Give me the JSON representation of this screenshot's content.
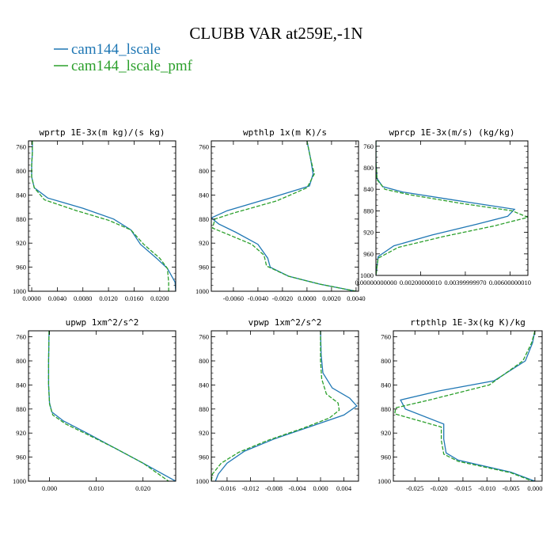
{
  "figure": {
    "title": "CLUBB VAR at259E,-1N",
    "legend": [
      {
        "label": "cam144_lscale",
        "color": "#1f77b4"
      },
      {
        "label": "cam144_lscale_pmf",
        "color": "#2ca02c"
      }
    ]
  },
  "chart_data": [
    {
      "type": "line",
      "title": "wprtp  1E-3x(m kg)/(s kg)",
      "xlim": [
        -0.0005,
        0.0225
      ],
      "ylim": [
        1000,
        750
      ],
      "xticks": [
        "0.0000",
        "0.0040",
        "0.0080",
        "0.0120",
        "0.0160",
        "0.0200"
      ],
      "xtick_values": [
        0,
        0.004,
        0.008,
        0.012,
        0.016,
        0.02
      ],
      "yticks": [
        "760",
        "800",
        "840",
        "880",
        "920",
        "960",
        "1000"
      ],
      "ytick_values": [
        760,
        800,
        840,
        880,
        920,
        960,
        1000
      ],
      "series": [
        {
          "name": "cam144_lscale",
          "color": "#1f77b4",
          "x": [
            0.0001,
            0.0001,
            0.0,
            0.0,
            0.0004,
            0.0025,
            0.008,
            0.0128,
            0.0155,
            0.017,
            0.0195,
            0.0212,
            0.0224,
            0.0225
          ],
          "y": [
            750,
            770,
            790,
            810,
            828,
            845,
            862,
            880,
            898,
            922,
            945,
            962,
            985,
            1000
          ]
        },
        {
          "name": "cam144_lscale_pmf",
          "color": "#2ca02c",
          "x": [
            0.0001,
            0.0001,
            0.0,
            0.0,
            0.0004,
            0.002,
            0.007,
            0.012,
            0.0155,
            0.0175,
            0.02,
            0.0212,
            0.0214,
            0.0214
          ],
          "y": [
            750,
            770,
            790,
            810,
            828,
            848,
            866,
            882,
            898,
            922,
            945,
            962,
            985,
            1000
          ]
        }
      ]
    },
    {
      "type": "line",
      "title": "wpthlp  1x(m K)/s",
      "xlim": [
        -0.0078,
        0.0042
      ],
      "ylim": [
        1000,
        750
      ],
      "xticks": [
        "-0.0060",
        "-0.0040",
        "-0.0020",
        "0.0000",
        "0.0020",
        "0.0040"
      ],
      "xtick_values": [
        -0.006,
        -0.004,
        -0.002,
        0,
        0.002,
        0.004
      ],
      "yticks": [
        "760",
        "800",
        "840",
        "880",
        "920",
        "960",
        "1000"
      ],
      "ytick_values": [
        760,
        800,
        840,
        880,
        920,
        960,
        1000
      ],
      "series": [
        {
          "name": "cam144_lscale",
          "color": "#1f77b4",
          "x": [
            0.0,
            0.0003,
            0.0005,
            0.0002,
            -0.003,
            -0.0065,
            -0.0078,
            -0.0072,
            -0.0058,
            -0.004,
            -0.0032,
            -0.003,
            -0.0015,
            0.001,
            0.004
          ],
          "y": [
            750,
            780,
            805,
            825,
            845,
            866,
            878,
            888,
            902,
            922,
            945,
            960,
            975,
            988,
            1000
          ]
        },
        {
          "name": "cam144_lscale_pmf",
          "color": "#2ca02c",
          "x": [
            0.0,
            0.0003,
            0.0006,
            0.0,
            -0.0025,
            -0.006,
            -0.0075,
            -0.0077,
            -0.0065,
            -0.0045,
            -0.0035,
            -0.0033,
            -0.0015,
            0.001,
            0.004
          ],
          "y": [
            750,
            780,
            805,
            828,
            850,
            870,
            880,
            895,
            905,
            922,
            940,
            958,
            975,
            988,
            1000
          ]
        }
      ]
    },
    {
      "type": "line",
      "title": "wprcp  1E-3x(m/s) (kg/kg)",
      "xlim": [
        0.0,
        0.0068
      ],
      "ylim": [
        1000,
        750
      ],
      "xticks": [
        "0.00000000000",
        "0.00200000010",
        "0.00399999970",
        "0.00600000010"
      ],
      "xtick_values": [
        0,
        0.002,
        0.004,
        0.006
      ],
      "yticks": [
        "760",
        "800",
        "840",
        "880",
        "920",
        "960",
        "1000"
      ],
      "ytick_values": [
        760,
        800,
        840,
        880,
        920,
        960,
        1000
      ],
      "series": [
        {
          "name": "cam144_lscale",
          "color": "#1f77b4",
          "x": [
            0.0,
            0.0,
            5e-05,
            0.0003,
            0.0012,
            0.0035,
            0.0062,
            0.0059,
            0.0045,
            0.0025,
            0.0008,
            0.0001,
            0.0
          ],
          "y": [
            750,
            790,
            820,
            835,
            845,
            860,
            877,
            890,
            905,
            925,
            945,
            965,
            1000
          ]
        },
        {
          "name": "cam144_lscale_pmf",
          "color": "#2ca02c",
          "x": [
            0.0,
            0.0,
            5e-05,
            0.0004,
            0.0015,
            0.0038,
            0.0061,
            0.0068,
            0.0053,
            0.003,
            0.001,
            0.0001,
            0.0
          ],
          "y": [
            750,
            790,
            822,
            840,
            850,
            866,
            880,
            892,
            908,
            928,
            948,
            968,
            1000
          ]
        }
      ]
    },
    {
      "type": "line",
      "title": "upwp  1xm^2/s^2",
      "xlim": [
        -0.0045,
        0.027
      ],
      "ylim": [
        1000,
        750
      ],
      "xticks": [
        "0.000",
        "0.010",
        "0.020"
      ],
      "xtick_values": [
        0,
        0.01,
        0.02
      ],
      "yticks": [
        "760",
        "800",
        "840",
        "880",
        "920",
        "960",
        "1000"
      ],
      "ytick_values": [
        760,
        800,
        840,
        880,
        920,
        960,
        1000
      ],
      "series": [
        {
          "name": "cam144_lscale",
          "color": "#1f77b4",
          "x": [
            -0.0001,
            -0.0002,
            -0.0002,
            0.0,
            0.0005,
            0.003,
            0.008,
            0.014,
            0.02,
            0.027
          ],
          "y": [
            750,
            800,
            840,
            870,
            885,
            900,
            920,
            945,
            970,
            1000
          ]
        },
        {
          "name": "cam144_lscale_pmf",
          "color": "#2ca02c",
          "x": [
            -0.0001,
            -0.0002,
            -0.0002,
            0.0,
            0.0007,
            0.0035,
            0.008,
            0.014,
            0.02,
            0.0255
          ],
          "y": [
            750,
            800,
            840,
            872,
            890,
            905,
            922,
            945,
            970,
            1000
          ]
        }
      ]
    },
    {
      "type": "line",
      "title": "vpwp  1xm^2/s^2",
      "xlim": [
        -0.0187,
        0.0065
      ],
      "ylim": [
        1000,
        750
      ],
      "xticks": [
        "-0.016",
        "-0.012",
        "-0.008",
        "-0.004",
        "0.000",
        "0.004"
      ],
      "xtick_values": [
        -0.016,
        -0.012,
        -0.008,
        -0.004,
        0,
        0.004
      ],
      "yticks": [
        "760",
        "800",
        "840",
        "880",
        "920",
        "960",
        "1000"
      ],
      "ytick_values": [
        760,
        800,
        840,
        880,
        920,
        960,
        1000
      ],
      "series": [
        {
          "name": "cam144_lscale",
          "color": "#1f77b4",
          "x": [
            0.0,
            0.0001,
            0.0004,
            0.002,
            0.005,
            0.0062,
            0.004,
            -0.002,
            -0.008,
            -0.013,
            -0.016,
            -0.0175,
            -0.018
          ],
          "y": [
            750,
            790,
            820,
            845,
            862,
            875,
            890,
            910,
            930,
            950,
            970,
            988,
            1000
          ]
        },
        {
          "name": "cam144_lscale_pmf",
          "color": "#2ca02c",
          "x": [
            0.0,
            0.0,
            0.0002,
            0.001,
            0.003,
            0.0032,
            0.0015,
            -0.003,
            -0.009,
            -0.014,
            -0.017,
            -0.0185,
            -0.0187
          ],
          "y": [
            750,
            800,
            830,
            855,
            870,
            882,
            895,
            912,
            932,
            952,
            970,
            988,
            1000
          ]
        }
      ]
    },
    {
      "type": "line",
      "title": "rtpthlp  1E-3x(kg K)/kg",
      "xlim": [
        -0.0295,
        0.0015
      ],
      "ylim": [
        1000,
        750
      ],
      "xticks": [
        "-0.025",
        "-0.020",
        "-0.015",
        "-0.010",
        "-0.005",
        "0.000"
      ],
      "xtick_values": [
        -0.025,
        -0.02,
        -0.015,
        -0.01,
        -0.005,
        0
      ],
      "yticks": [
        "760",
        "800",
        "840",
        "880",
        "920",
        "960",
        "1000"
      ],
      "ytick_values": [
        760,
        800,
        840,
        880,
        920,
        960,
        1000
      ],
      "series": [
        {
          "name": "cam144_lscale",
          "color": "#1f77b4",
          "x": [
            0.0,
            -0.0005,
            -0.002,
            -0.0085,
            -0.02,
            -0.028,
            -0.027,
            -0.019,
            -0.019,
            -0.0185,
            -0.016,
            -0.005,
            0.0
          ],
          "y": [
            750,
            770,
            800,
            833,
            850,
            865,
            880,
            905,
            930,
            953,
            965,
            985,
            1000
          ]
        },
        {
          "name": "cam144_lscale_pmf",
          "color": "#2ca02c",
          "x": [
            0.0,
            -0.0007,
            -0.0025,
            -0.0095,
            -0.022,
            -0.029,
            -0.0292,
            -0.0195,
            -0.0195,
            -0.019,
            -0.016,
            -0.005,
            -0.0005
          ],
          "y": [
            750,
            770,
            800,
            840,
            865,
            878,
            888,
            910,
            932,
            955,
            967,
            986,
            1000
          ]
        }
      ]
    }
  ]
}
